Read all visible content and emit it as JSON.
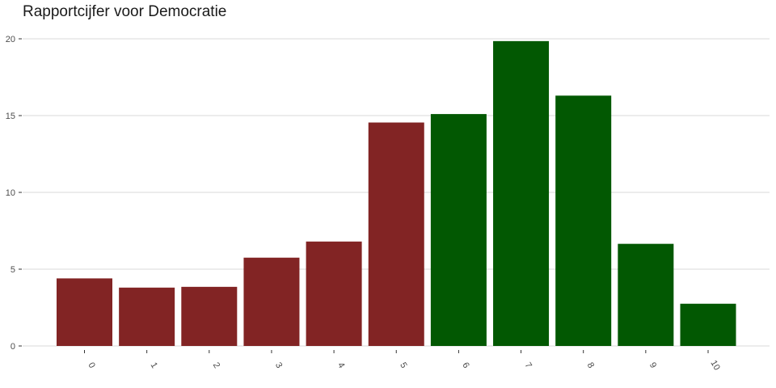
{
  "chart_data": {
    "type": "bar",
    "title": "Rapportcijfer voor Democratie",
    "xlabel": "",
    "ylabel": "",
    "categories": [
      "0",
      "1",
      "2",
      "3",
      "4",
      "5",
      "6",
      "7",
      "8",
      "9",
      "10"
    ],
    "values": [
      4.4,
      3.8,
      3.85,
      5.75,
      6.8,
      14.55,
      15.1,
      19.85,
      16.3,
      6.65,
      2.75
    ],
    "bar_colors": [
      "#822424",
      "#822424",
      "#822424",
      "#822424",
      "#822424",
      "#822424",
      "#025802",
      "#025802",
      "#025802",
      "#025802",
      "#025802"
    ],
    "yticks": [
      0,
      5,
      10,
      15,
      20
    ],
    "ylim": [
      0,
      21
    ],
    "grid": "horizontal",
    "legend": "none"
  }
}
